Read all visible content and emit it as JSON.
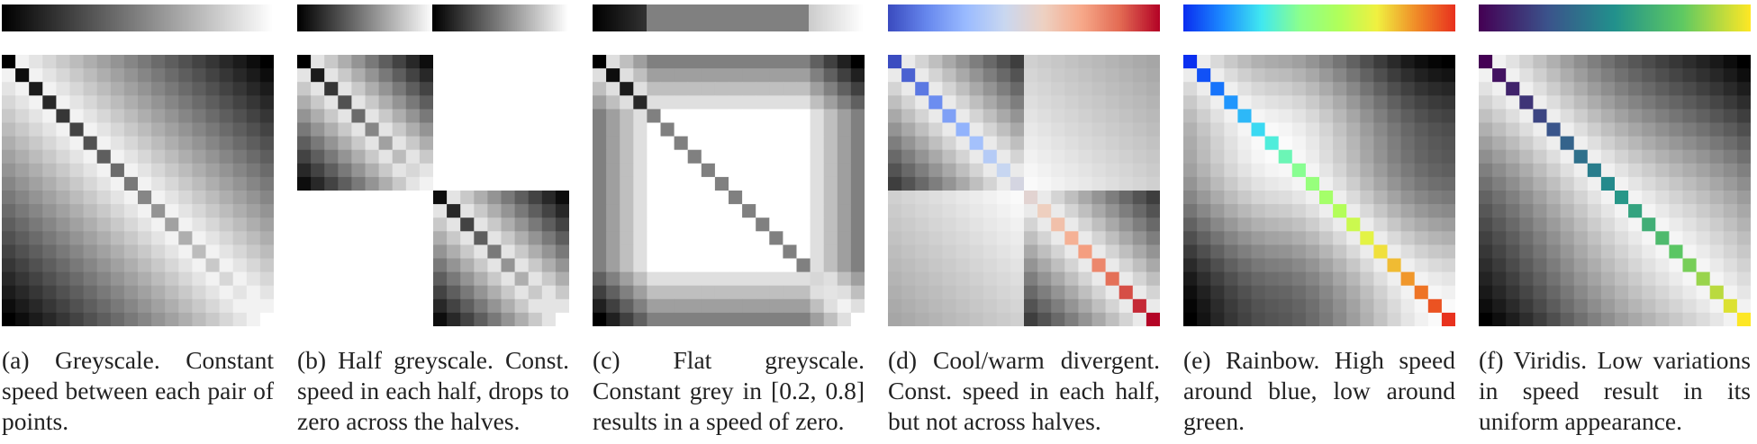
{
  "figure": {
    "panels": [
      {
        "id": "a",
        "colormap": "greyscale",
        "caption": "(a) Greyscale. Constant speed between each pair of points."
      },
      {
        "id": "b",
        "colormap": "half-greyscale",
        "caption": "(b) Half greyscale. Const. speed in each half, drops to zero across the halves."
      },
      {
        "id": "c",
        "colormap": "flat-greyscale",
        "caption": "(c) Flat greyscale. Constant grey in [0.2, 0.8] results in a speed of zero."
      },
      {
        "id": "d",
        "colormap": "cool-warm",
        "caption": "(d) Cool/warm divergent. Const. speed in each half, but not across halves."
      },
      {
        "id": "e",
        "colormap": "rainbow",
        "caption": "(e) Rainbow. High speed around blue, low around green."
      },
      {
        "id": "f",
        "colormap": "viridis",
        "caption": "(f) Viridis. Low variations in speed result in its uniform appearance."
      }
    ]
  },
  "colors": {
    "cool_warm": [
      "#3b4cc0",
      "#6788ee",
      "#9abbff",
      "#c9d7f0",
      "#edd1c2",
      "#f7a889",
      "#e26952",
      "#b40426"
    ],
    "rainbow": [
      "#0a2ff0",
      "#1c8cff",
      "#40e8f0",
      "#8cff8c",
      "#b0ff5a",
      "#f0f040",
      "#f08c28",
      "#e8321e"
    ],
    "viridis": [
      "#440154",
      "#3b528b",
      "#21918c",
      "#5ec962",
      "#fde725"
    ]
  },
  "chart_data": [
    {
      "type": "heatmap",
      "colormap": "greyscale",
      "n": 20
    },
    {
      "type": "heatmap",
      "colormap": "half-greyscale",
      "n": 20
    },
    {
      "type": "heatmap",
      "colormap": "flat-greyscale",
      "n": 20
    },
    {
      "type": "heatmap",
      "colormap": "cool-warm",
      "n": 20
    },
    {
      "type": "heatmap",
      "colormap": "rainbow",
      "n": 20
    },
    {
      "type": "heatmap",
      "colormap": "viridis",
      "n": 20
    }
  ]
}
